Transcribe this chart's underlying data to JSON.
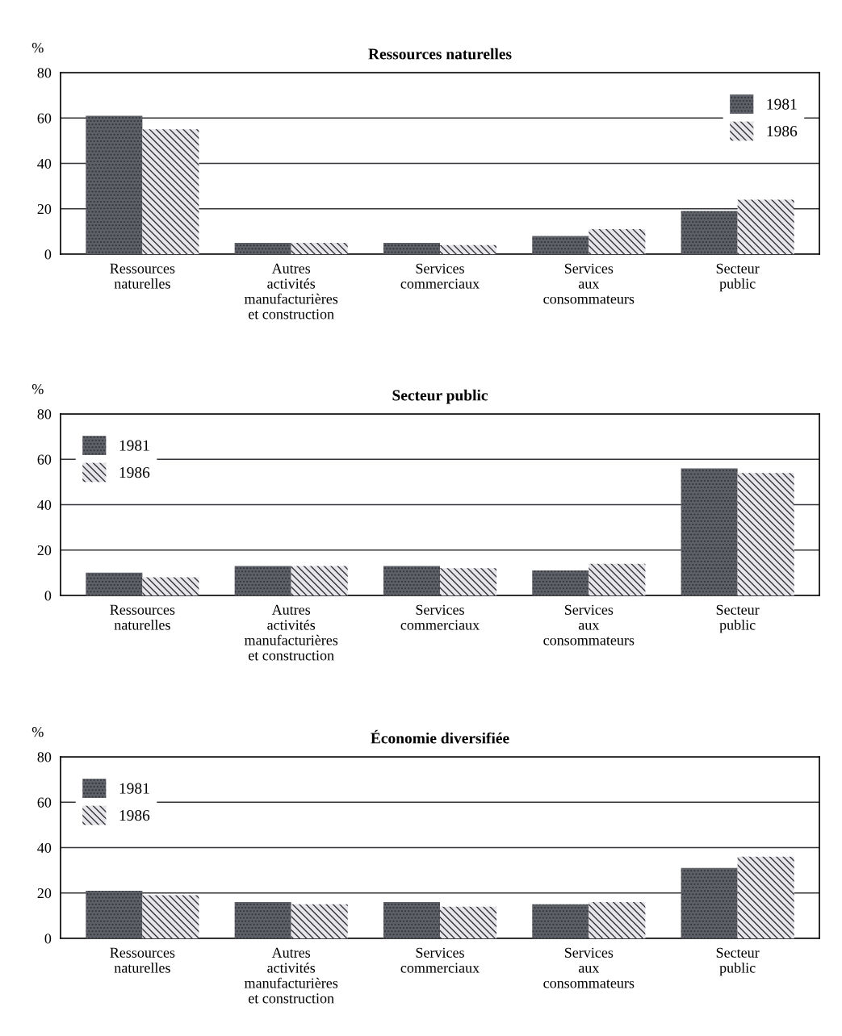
{
  "chart_data": [
    {
      "type": "bar",
      "title": "Ressources naturelles",
      "ylabel": "%",
      "categories": [
        "Ressources\nnaturelles",
        "Autres\nactivités\nmanufacturières\net construction",
        "Services\ncommerciaux",
        "Services\naux\nconsommateurs",
        "Secteur\npublic"
      ],
      "series": [
        {
          "name": "1981",
          "color": "#5e6068",
          "values": [
            61,
            5,
            5,
            8,
            19
          ]
        },
        {
          "name": "1986",
          "color": "#e6e6ea",
          "values": [
            55,
            5,
            4,
            11,
            24
          ]
        }
      ],
      "ylim": [
        0,
        80
      ],
      "yticks": [
        0,
        20,
        40,
        60,
        80
      ],
      "grid": "y",
      "legend": "top right",
      "tick_labels": "y"
    },
    {
      "type": "bar",
      "title": "Secteur public",
      "ylabel": "%",
      "categories": [
        "Ressources\nnaturelles",
        "Autres\nactivités\nmanufacturières\net construction",
        "Services\ncommerciaux",
        "Services\naux\nconsommateurs",
        "Secteur\npublic"
      ],
      "series": [
        {
          "name": "1981",
          "color": "#5e6068",
          "values": [
            10,
            13,
            13,
            11,
            56
          ]
        },
        {
          "name": "1986",
          "color": "#e6e6ea",
          "values": [
            8,
            13,
            12,
            14,
            54
          ]
        }
      ],
      "ylim": [
        0,
        80
      ],
      "yticks": [
        0,
        20,
        40,
        60,
        80
      ],
      "grid": "y",
      "legend": "top left",
      "tick_labels": "y"
    },
    {
      "type": "bar",
      "title": "Économie diversifiée",
      "ylabel": "%",
      "categories": [
        "Ressources\nnaturelles",
        "Autres\nactivités\nmanufacturières\net construction",
        "Services\ncommerciaux",
        "Services\naux\nconsommateurs",
        "Secteur\npublic"
      ],
      "series": [
        {
          "name": "1981",
          "color": "#5e6068",
          "values": [
            21,
            16,
            16,
            15,
            31
          ]
        },
        {
          "name": "1986",
          "color": "#e6e6ea",
          "values": [
            19,
            15,
            14,
            16,
            36
          ]
        }
      ],
      "ylim": [
        0,
        80
      ],
      "yticks": [
        0,
        20,
        40,
        60,
        80
      ],
      "grid": "y",
      "legend": "top left",
      "tick_labels": "y"
    }
  ]
}
